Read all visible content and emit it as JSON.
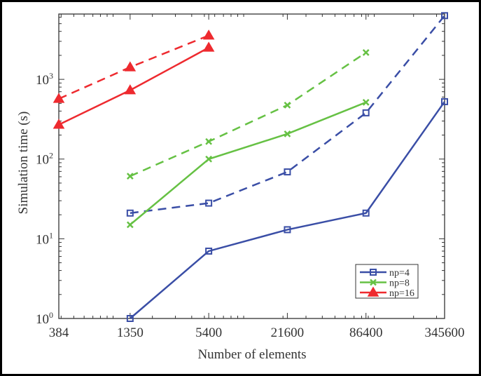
{
  "chart_data": {
    "type": "line",
    "title": "",
    "xlabel": "Number of elements",
    "ylabel": "Simulation time (s)",
    "xscale": "log",
    "yscale": "log",
    "xlim": [
      384,
      345600
    ],
    "ylim": [
      1,
      6600
    ],
    "xticks": [
      384,
      1350,
      5400,
      21600,
      86400,
      345600
    ],
    "xtick_labels": [
      "384",
      "1350",
      "5400",
      "21600",
      "86400",
      "345600"
    ],
    "yticks": [
      1,
      10,
      100,
      1000
    ],
    "ytick_labels": [
      {
        "base": "10",
        "exp": "0"
      },
      {
        "base": "10",
        "exp": "1"
      },
      {
        "base": "10",
        "exp": "2"
      },
      {
        "base": "10",
        "exp": "3"
      }
    ],
    "grid": false,
    "legend_position": "bottom-right",
    "series": [
      {
        "name": "np=4",
        "color": "#3a4ea6",
        "marker": "square",
        "style": "solid",
        "x": [
          1350,
          5400,
          21600,
          86400,
          345600
        ],
        "y": [
          1,
          7,
          13,
          21,
          525
        ]
      },
      {
        "color": "#3a4ea6",
        "marker": "square",
        "style": "dashed",
        "x": [
          1350,
          5400,
          21600,
          86400,
          345600
        ],
        "y": [
          21,
          28,
          69,
          380,
          6300
        ]
      },
      {
        "name": "np=8",
        "color": "#66c144",
        "marker": "x",
        "style": "solid",
        "x": [
          1350,
          5400,
          21600,
          86400
        ],
        "y": [
          15,
          100,
          207,
          515
        ]
      },
      {
        "color": "#66c144",
        "marker": "x",
        "style": "dashed",
        "x": [
          1350,
          5400,
          21600,
          86400
        ],
        "y": [
          61,
          166,
          475,
          2170
        ]
      },
      {
        "name": "np=16",
        "color": "#ee2a2f",
        "marker": "triangle",
        "style": "solid",
        "x": [
          384,
          1350,
          5400
        ],
        "y": [
          270,
          730,
          2500
        ]
      },
      {
        "color": "#ee2a2f",
        "marker": "triangle",
        "style": "dashed",
        "x": [
          384,
          1350,
          5400
        ],
        "y": [
          570,
          1420,
          3550
        ]
      }
    ]
  }
}
